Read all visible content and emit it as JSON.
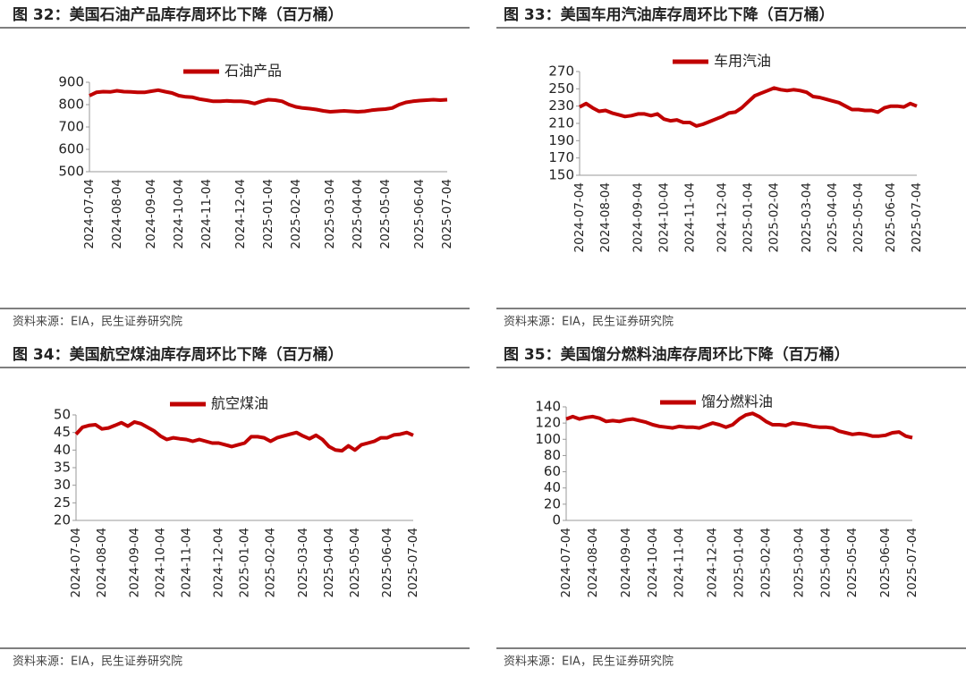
{
  "chart_data": [
    {
      "type": "line",
      "title": "图 32：美国石油产品库存周环比下降（百万桶）",
      "source": "资料来源：EIA，民生证券研究院",
      "categories": [
        "2024-07-04",
        null,
        null,
        null,
        "2024-08-04",
        null,
        null,
        null,
        null,
        "2024-09-04",
        null,
        null,
        null,
        "2024-10-04",
        null,
        null,
        null,
        "2024-11-04",
        null,
        null,
        null,
        null,
        "2024-12-04",
        null,
        null,
        null,
        "2025-01-04",
        null,
        null,
        null,
        "2025-02-04",
        null,
        null,
        null,
        null,
        "2025-03-04",
        null,
        null,
        null,
        "2025-04-04",
        null,
        null,
        null,
        "2025-05-04",
        null,
        null,
        null,
        null,
        "2025-06-04",
        null,
        null,
        null,
        "2025-07-04"
      ],
      "series": [
        {
          "name": "石油产品",
          "color": "#c00000",
          "values": [
            840,
            855,
            858,
            857,
            862,
            858,
            857,
            855,
            855,
            860,
            865,
            858,
            852,
            840,
            835,
            833,
            825,
            820,
            815,
            815,
            817,
            815,
            815,
            812,
            805,
            815,
            822,
            820,
            815,
            800,
            790,
            785,
            782,
            778,
            772,
            768,
            770,
            772,
            770,
            768,
            770,
            775,
            778,
            780,
            785,
            800,
            810,
            815,
            818,
            820,
            822,
            820,
            822
          ]
        }
      ],
      "ylim": [
        500,
        900
      ],
      "yticks": [
        500,
        600,
        700,
        800,
        900
      ],
      "legend": "top"
    },
    {
      "type": "line",
      "title": "图 33：美国车用汽油库存周环比下降（百万桶）",
      "source": "资料来源：EIA，民生证券研究院",
      "categories": [
        "2024-07-04",
        null,
        null,
        null,
        "2024-08-04",
        null,
        null,
        null,
        null,
        "2024-09-04",
        null,
        null,
        null,
        "2024-10-04",
        null,
        null,
        null,
        "2024-11-04",
        null,
        null,
        null,
        null,
        "2024-12-04",
        null,
        null,
        null,
        "2025-01-04",
        null,
        null,
        null,
        "2025-02-04",
        null,
        null,
        null,
        null,
        "2025-03-04",
        null,
        null,
        null,
        "2025-04-04",
        null,
        null,
        null,
        "2025-05-04",
        null,
        null,
        null,
        null,
        "2025-06-04",
        null,
        null,
        null,
        "2025-07-04"
      ],
      "series": [
        {
          "name": "车用汽油",
          "color": "#c00000",
          "values": [
            229,
            233,
            228,
            224,
            225,
            222,
            220,
            218,
            219,
            221,
            221,
            219,
            221,
            215,
            213,
            214,
            211,
            211,
            207,
            209,
            212,
            215,
            218,
            222,
            223,
            228,
            235,
            242,
            245,
            248,
            251,
            249,
            248,
            249,
            248,
            246,
            241,
            240,
            238,
            236,
            234,
            230,
            226,
            226,
            225,
            225,
            223,
            228,
            230,
            230,
            229,
            233,
            230
          ]
        }
      ],
      "ylim": [
        150,
        270
      ],
      "yticks": [
        150,
        170,
        190,
        210,
        230,
        250,
        270
      ],
      "legend": "top"
    },
    {
      "type": "line",
      "title": "图 34：美国航空煤油库存周环比下降（百万桶）",
      "source": "资料来源：EIA，民生证券研究院",
      "categories": [
        "2024-07-04",
        null,
        null,
        null,
        "2024-08-04",
        null,
        null,
        null,
        null,
        "2024-09-04",
        null,
        null,
        null,
        "2024-10-04",
        null,
        null,
        null,
        "2024-11-04",
        null,
        null,
        null,
        null,
        "2024-12-04",
        null,
        null,
        null,
        "2025-01-04",
        null,
        null,
        null,
        "2025-02-04",
        null,
        null,
        null,
        null,
        "2025-03-04",
        null,
        null,
        null,
        "2025-04-04",
        null,
        null,
        null,
        "2025-05-04",
        null,
        null,
        null,
        null,
        "2025-06-04",
        null,
        null,
        null,
        "2025-07-04"
      ],
      "series": [
        {
          "name": "航空煤油",
          "color": "#c00000",
          "values": [
            44.5,
            46.5,
            47,
            47.2,
            46,
            46.3,
            47,
            47.8,
            46.8,
            48,
            47.5,
            46.5,
            45.5,
            44,
            43,
            43.5,
            43.2,
            43,
            42.5,
            43,
            42.5,
            42,
            42,
            41.5,
            41,
            41.5,
            42,
            43.8,
            43.8,
            43.5,
            42.5,
            43.5,
            44,
            44.5,
            45,
            44,
            43.2,
            44.2,
            43,
            41,
            40,
            39.8,
            41.2,
            40,
            41.5,
            42,
            42.5,
            43.5,
            43.5,
            44.3,
            44.5,
            45,
            44.2
          ]
        }
      ],
      "ylim": [
        20,
        50
      ],
      "yticks": [
        20,
        25,
        30,
        35,
        40,
        45,
        50
      ],
      "legend": "top"
    },
    {
      "type": "line",
      "title": "图 35：美国馏分燃料油库存周环比下降（百万桶）",
      "source": "资料来源：EIA，民生证券研究院",
      "categories": [
        "2024-07-04",
        null,
        null,
        null,
        "2024-08-04",
        null,
        null,
        null,
        null,
        "2024-09-04",
        null,
        null,
        null,
        "2024-10-04",
        null,
        null,
        null,
        "2024-11-04",
        null,
        null,
        null,
        null,
        "2024-12-04",
        null,
        null,
        null,
        "2025-01-04",
        null,
        null,
        null,
        "2025-02-04",
        null,
        null,
        null,
        null,
        "2025-03-04",
        null,
        null,
        null,
        "2025-04-04",
        null,
        null,
        null,
        "2025-05-04",
        null,
        null,
        null,
        null,
        "2025-06-04",
        null,
        null,
        null,
        "2025-07-04"
      ],
      "series": [
        {
          "name": "馏分燃料油",
          "color": "#c00000",
          "values": [
            125,
            128,
            125,
            127,
            128,
            126,
            122,
            123,
            122,
            124,
            125,
            123,
            121,
            118,
            116,
            115,
            114,
            116,
            115,
            115,
            114,
            117,
            120,
            118,
            115,
            118,
            125,
            130,
            132,
            128,
            122,
            118,
            118,
            117,
            120,
            119,
            118,
            116,
            115,
            115,
            114,
            110,
            108,
            106,
            107,
            106,
            104,
            104,
            105,
            108,
            109,
            104,
            102
          ]
        }
      ],
      "ylim": [
        0,
        140
      ],
      "yticks": [
        0,
        20,
        40,
        60,
        80,
        100,
        120,
        140
      ],
      "legend": "top"
    }
  ]
}
